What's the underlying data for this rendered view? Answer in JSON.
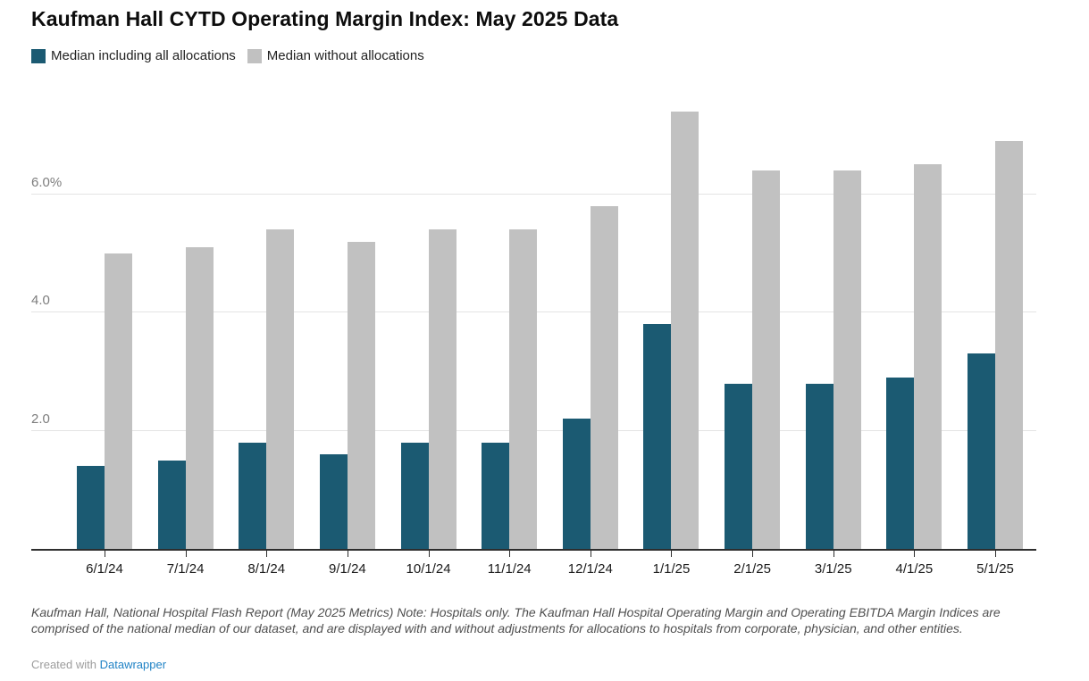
{
  "chart_data": {
    "type": "bar",
    "title": "Kaufman Hall CYTD Operating Margin Index: May 2025 Data",
    "categories": [
      "6/1/24",
      "7/1/24",
      "8/1/24",
      "9/1/24",
      "10/1/24",
      "11/1/24",
      "12/1/24",
      "1/1/25",
      "2/1/25",
      "3/1/25",
      "4/1/25",
      "5/1/25"
    ],
    "series": [
      {
        "name": "Median including all allocations",
        "color": "#1b5a72",
        "values": [
          1.4,
          1.5,
          1.8,
          1.6,
          1.8,
          1.8,
          2.2,
          3.8,
          2.8,
          2.8,
          2.9,
          3.3
        ]
      },
      {
        "name": "Median without allocations",
        "color": "#c1c1c1",
        "values": [
          5.0,
          5.1,
          5.4,
          5.2,
          5.4,
          5.4,
          5.8,
          7.4,
          6.4,
          6.4,
          6.5,
          6.9
        ]
      }
    ],
    "xlabel": "",
    "ylabel": "",
    "unit": "%",
    "y_ticks": [
      {
        "value": 2,
        "label": "2.0"
      },
      {
        "value": 4,
        "label": "4.0"
      },
      {
        "value": 6,
        "label": "6.0%"
      }
    ],
    "ylim": [
      0,
      7.85
    ],
    "grid": true,
    "legend_position": "top-left"
  },
  "footer": {
    "note": "Kaufman Hall, National Hospital Flash Report (May 2025 Metrics) Note: Hospitals only. The Kaufman Hall Hospital Operating Margin and Operating EBITDA Margin Indices are comprised of the national median of our dataset, and are displayed with and without adjustments for allocations to hospitals from corporate, physician, and other entities.",
    "attribution_prefix": "Created with",
    "attribution_link": "Datawrapper"
  }
}
